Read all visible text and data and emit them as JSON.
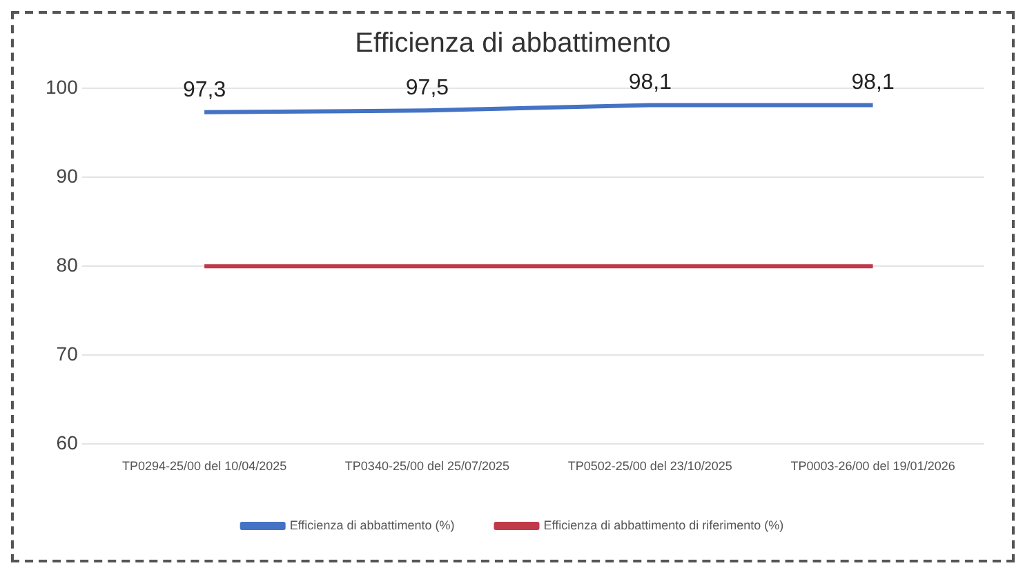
{
  "chart_data": {
    "type": "line",
    "title": "Efficienza di abbattimento",
    "categories": [
      "TP0294-25/00 del 10/04/2025",
      "TP0340-25/00 del 25/07/2025",
      "TP0502-25/00 del 23/10/2025",
      "TP0003-26/00 del 19/01/2026"
    ],
    "series": [
      {
        "name": "Efficienza di abbattimento (%)",
        "color": "#4472c4",
        "values": [
          97.3,
          97.5,
          98.1,
          98.1
        ],
        "value_labels": [
          "97,3",
          "97,5",
          "98,1",
          "98,1"
        ]
      },
      {
        "name": "Efficienza di abbattimento di riferimento (%)",
        "color": "#c0394b",
        "values": [
          80,
          80,
          80,
          80
        ]
      }
    ],
    "ylim": [
      60,
      100
    ],
    "yticks": [
      60,
      70,
      80,
      90,
      100
    ],
    "grid": "y",
    "legend": "bottom",
    "marker": "none",
    "line_style": "solid"
  }
}
